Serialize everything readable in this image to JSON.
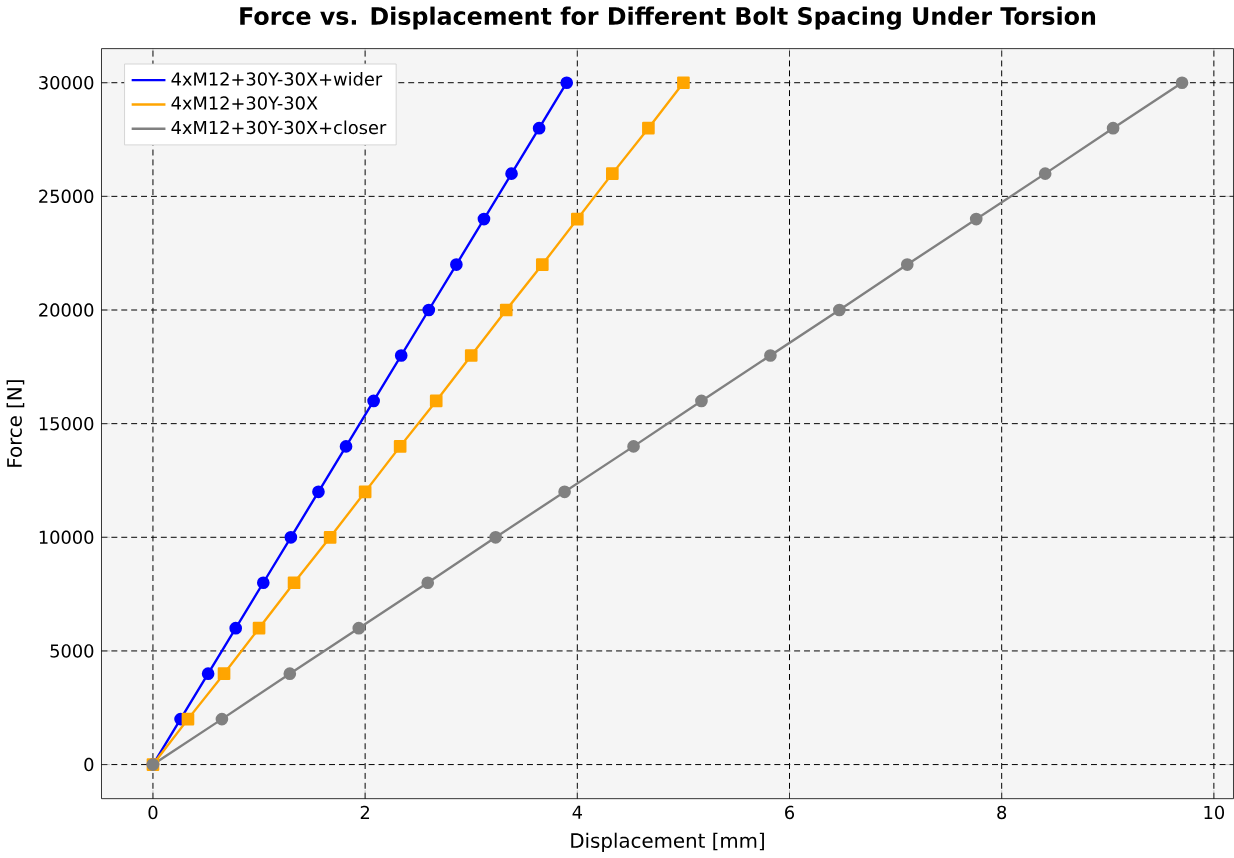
{
  "chart_data": {
    "type": "line",
    "title": "Force vs. Displacement for Different Bolt Spacing Under Torsion",
    "xlabel": "Displacement [mm]",
    "ylabel": "Force [N]",
    "xlim": [
      -0.485,
      10.185
    ],
    "ylim": [
      -1500,
      31500
    ],
    "xticks": [
      0,
      2,
      4,
      6,
      8,
      10
    ],
    "yticks": [
      0,
      5000,
      10000,
      15000,
      20000,
      25000,
      30000
    ],
    "grid": true,
    "legend": "top left",
    "line_style": "solid",
    "series": [
      {
        "name": "4xM12+30Y-30X+wider",
        "color": "#0000ff",
        "marker": "circle",
        "x": [
          0,
          0.26,
          0.52,
          0.78,
          1.04,
          1.3,
          1.56,
          1.82,
          2.08,
          2.34,
          2.6,
          2.86,
          3.12,
          3.38,
          3.64,
          3.9
        ],
        "values": [
          0,
          2000,
          4000,
          6000,
          8000,
          10000,
          12000,
          14000,
          16000,
          18000,
          20000,
          22000,
          24000,
          26000,
          28000,
          30000
        ]
      },
      {
        "name": "4xM12+30Y-30X",
        "color": "#ffa500",
        "marker": "square",
        "x": [
          0,
          0.33,
          0.67,
          1,
          1.33,
          1.67,
          2,
          2.33,
          2.67,
          3,
          3.33,
          3.67,
          4,
          4.33,
          4.67,
          5
        ],
        "values": [
          0,
          2000,
          4000,
          6000,
          8000,
          10000,
          12000,
          14000,
          16000,
          18000,
          20000,
          22000,
          24000,
          26000,
          28000,
          30000
        ]
      },
      {
        "name": "4xM12+30Y-30X+closer",
        "color": "#808080",
        "marker": "circle",
        "x": [
          0,
          0.65,
          1.29,
          1.94,
          2.59,
          3.23,
          3.88,
          4.53,
          5.17,
          5.82,
          6.47,
          7.11,
          7.76,
          8.41,
          9.05,
          9.7
        ],
        "values": [
          0,
          2000,
          4000,
          6000,
          8000,
          10000,
          12000,
          14000,
          16000,
          18000,
          20000,
          22000,
          24000,
          26000,
          28000,
          30000
        ]
      }
    ]
  }
}
